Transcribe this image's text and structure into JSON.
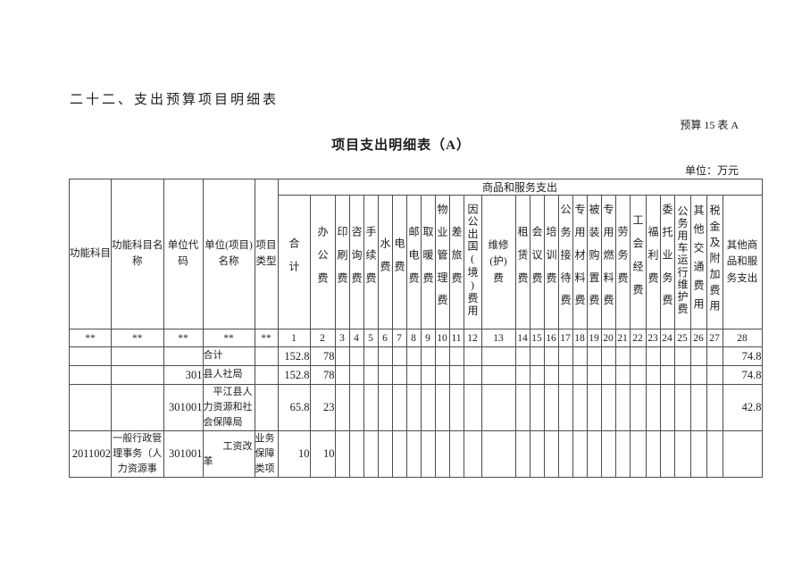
{
  "page": {
    "section_title": "二十二、支出预算项目明细表",
    "form_code": "预算 15 表 A",
    "table_title": "项目支出明细表（A）",
    "unit_note": "单位：万元"
  },
  "table": {
    "group_header": "商品和服务支出",
    "fixed_columns": [
      "功能科目",
      "功能科目名\n称",
      "单位代\n码",
      "单位(项目)\n名称",
      "项目\n类型"
    ],
    "value_columns": [
      "合计",
      "办公费",
      "印刷费",
      "咨询费",
      "手续费",
      "水费",
      "电费",
      "邮电费",
      "取暖费",
      "物业管理费",
      "差旅费",
      "因公出国(境)费用",
      "维修\n(护)\n费",
      "租赁费",
      "会议费",
      "培训费",
      "公务接待费",
      "专用材料费",
      "被装购置费",
      "专用燃料费",
      "劳务费",
      "工会经费",
      "福利费",
      "委托业务费",
      "公务用车运行维护费",
      "其他交通费用",
      "税金及附加费用",
      "其他商\n品和服\n务支出"
    ],
    "index_row": [
      "**",
      "**",
      "**",
      "**",
      "**",
      "1",
      "2",
      "3",
      "4",
      "5",
      "6",
      "7",
      "8",
      "9",
      "10",
      "11",
      "12",
      "13",
      "14",
      "15",
      "16",
      "17",
      "18",
      "19",
      "20",
      "21",
      "22",
      "23",
      "24",
      "25",
      "26",
      "27",
      "28"
    ],
    "rows": [
      [
        "",
        "",
        "",
        "合计",
        "",
        "152.8",
        "78",
        "",
        "",
        "",
        "",
        "",
        "",
        "",
        "",
        "",
        "",
        "",
        "",
        "",
        "",
        "",
        "",
        "",
        "",
        "",
        "",
        "",
        "",
        "",
        "",
        "",
        "74.8"
      ],
      [
        "",
        "",
        "301",
        "县人社局",
        "",
        "152.8",
        "78",
        "",
        "",
        "",
        "",
        "",
        "",
        "",
        "",
        "",
        "",
        "",
        "",
        "",
        "",
        "",
        "",
        "",
        "",
        "",
        "",
        "",
        "",
        "",
        "",
        "",
        "74.8"
      ],
      [
        "",
        "",
        "301001",
        "　平江县人\n力资源和社\n会保障局",
        "",
        "65.8",
        "23",
        "",
        "",
        "",
        "",
        "",
        "",
        "",
        "",
        "",
        "",
        "",
        "",
        "",
        "",
        "",
        "",
        "",
        "",
        "",
        "",
        "",
        "",
        "",
        "",
        "",
        "42.8"
      ],
      [
        "2011002",
        "一般行政管\n理事务（人\n力资源事",
        "301001",
        "　　工资改\n革",
        "业务\n保障\n类项",
        "10",
        "10",
        "",
        "",
        "",
        "",
        "",
        "",
        "",
        "",
        "",
        "",
        "",
        "",
        "",
        "",
        "",
        "",
        "",
        "",
        "",
        "",
        "",
        "",
        "",
        "",
        "",
        ""
      ]
    ]
  }
}
